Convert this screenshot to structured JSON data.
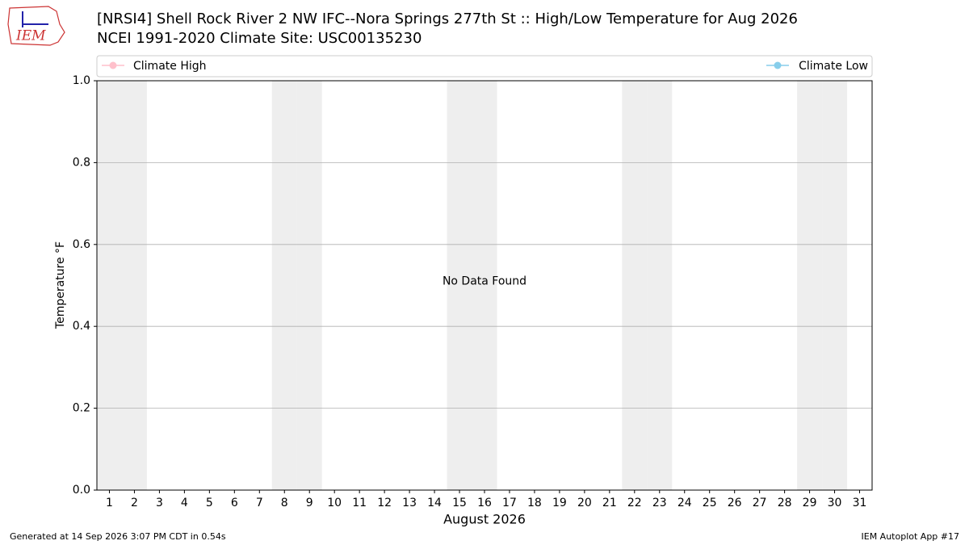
{
  "chart_data": {
    "type": "line",
    "title": "[NRSI4] Shell Rock River 2 NW IFC--Nora Springs 277th St :: High/Low Temperature for Aug 2026",
    "subtitle": "NCEI 1991-2020 Climate Site: USC00135230",
    "logo_text": "IEM",
    "xlabel": "August 2026",
    "ylabel": "Temperature °F",
    "annotation": "No Data Found",
    "footer_left": "Generated at 14 Sep 2026 3:07 PM CDT in 0.54s",
    "footer_right": "IEM Autoplot App #17",
    "x": [],
    "series": [
      {
        "name": "Climate High",
        "color": "#ffc0cb",
        "values": []
      },
      {
        "name": "Climate Low",
        "color": "#87ceeb",
        "values": []
      }
    ],
    "weekend_days": [
      1,
      2,
      8,
      9,
      15,
      16,
      22,
      23,
      29,
      30
    ],
    "weekend_color": "#eeeeee",
    "xlim": [
      0.5,
      31.5
    ],
    "xticks": [
      1,
      2,
      3,
      4,
      5,
      6,
      7,
      8,
      9,
      10,
      11,
      12,
      13,
      14,
      15,
      16,
      17,
      18,
      19,
      20,
      21,
      22,
      23,
      24,
      25,
      26,
      27,
      28,
      29,
      30,
      31
    ],
    "ylim": [
      0,
      1
    ],
    "yticks": [
      {
        "value": 0,
        "label": "0.0"
      },
      0.2,
      0.4,
      0.6,
      0.8,
      {
        "value": 1,
        "label": "1.0"
      }
    ],
    "grid": "y"
  }
}
